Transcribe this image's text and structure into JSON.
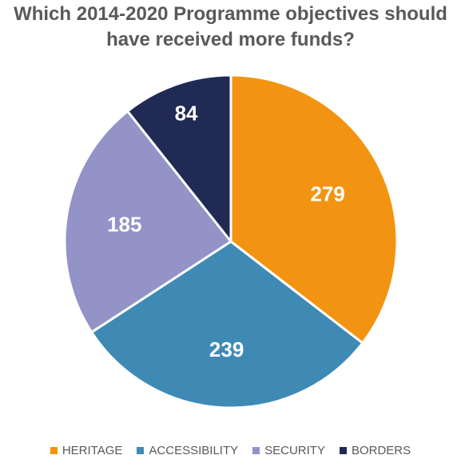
{
  "chart_data": {
    "type": "pie",
    "title_lines": [
      "Which 2014-2020 Programme objectives should",
      "have received more funds?"
    ],
    "categories": [
      "HERITAGE",
      "ACCESSIBILITY",
      "SECURITY",
      "BORDERS"
    ],
    "values": [
      279,
      239,
      185,
      84
    ],
    "colors": [
      "#F29411",
      "#3F8AB5",
      "#9393C8",
      "#202A54"
    ],
    "legend_position": "bottom",
    "start_angle": "12 o'clock",
    "direction": "clockwise"
  }
}
